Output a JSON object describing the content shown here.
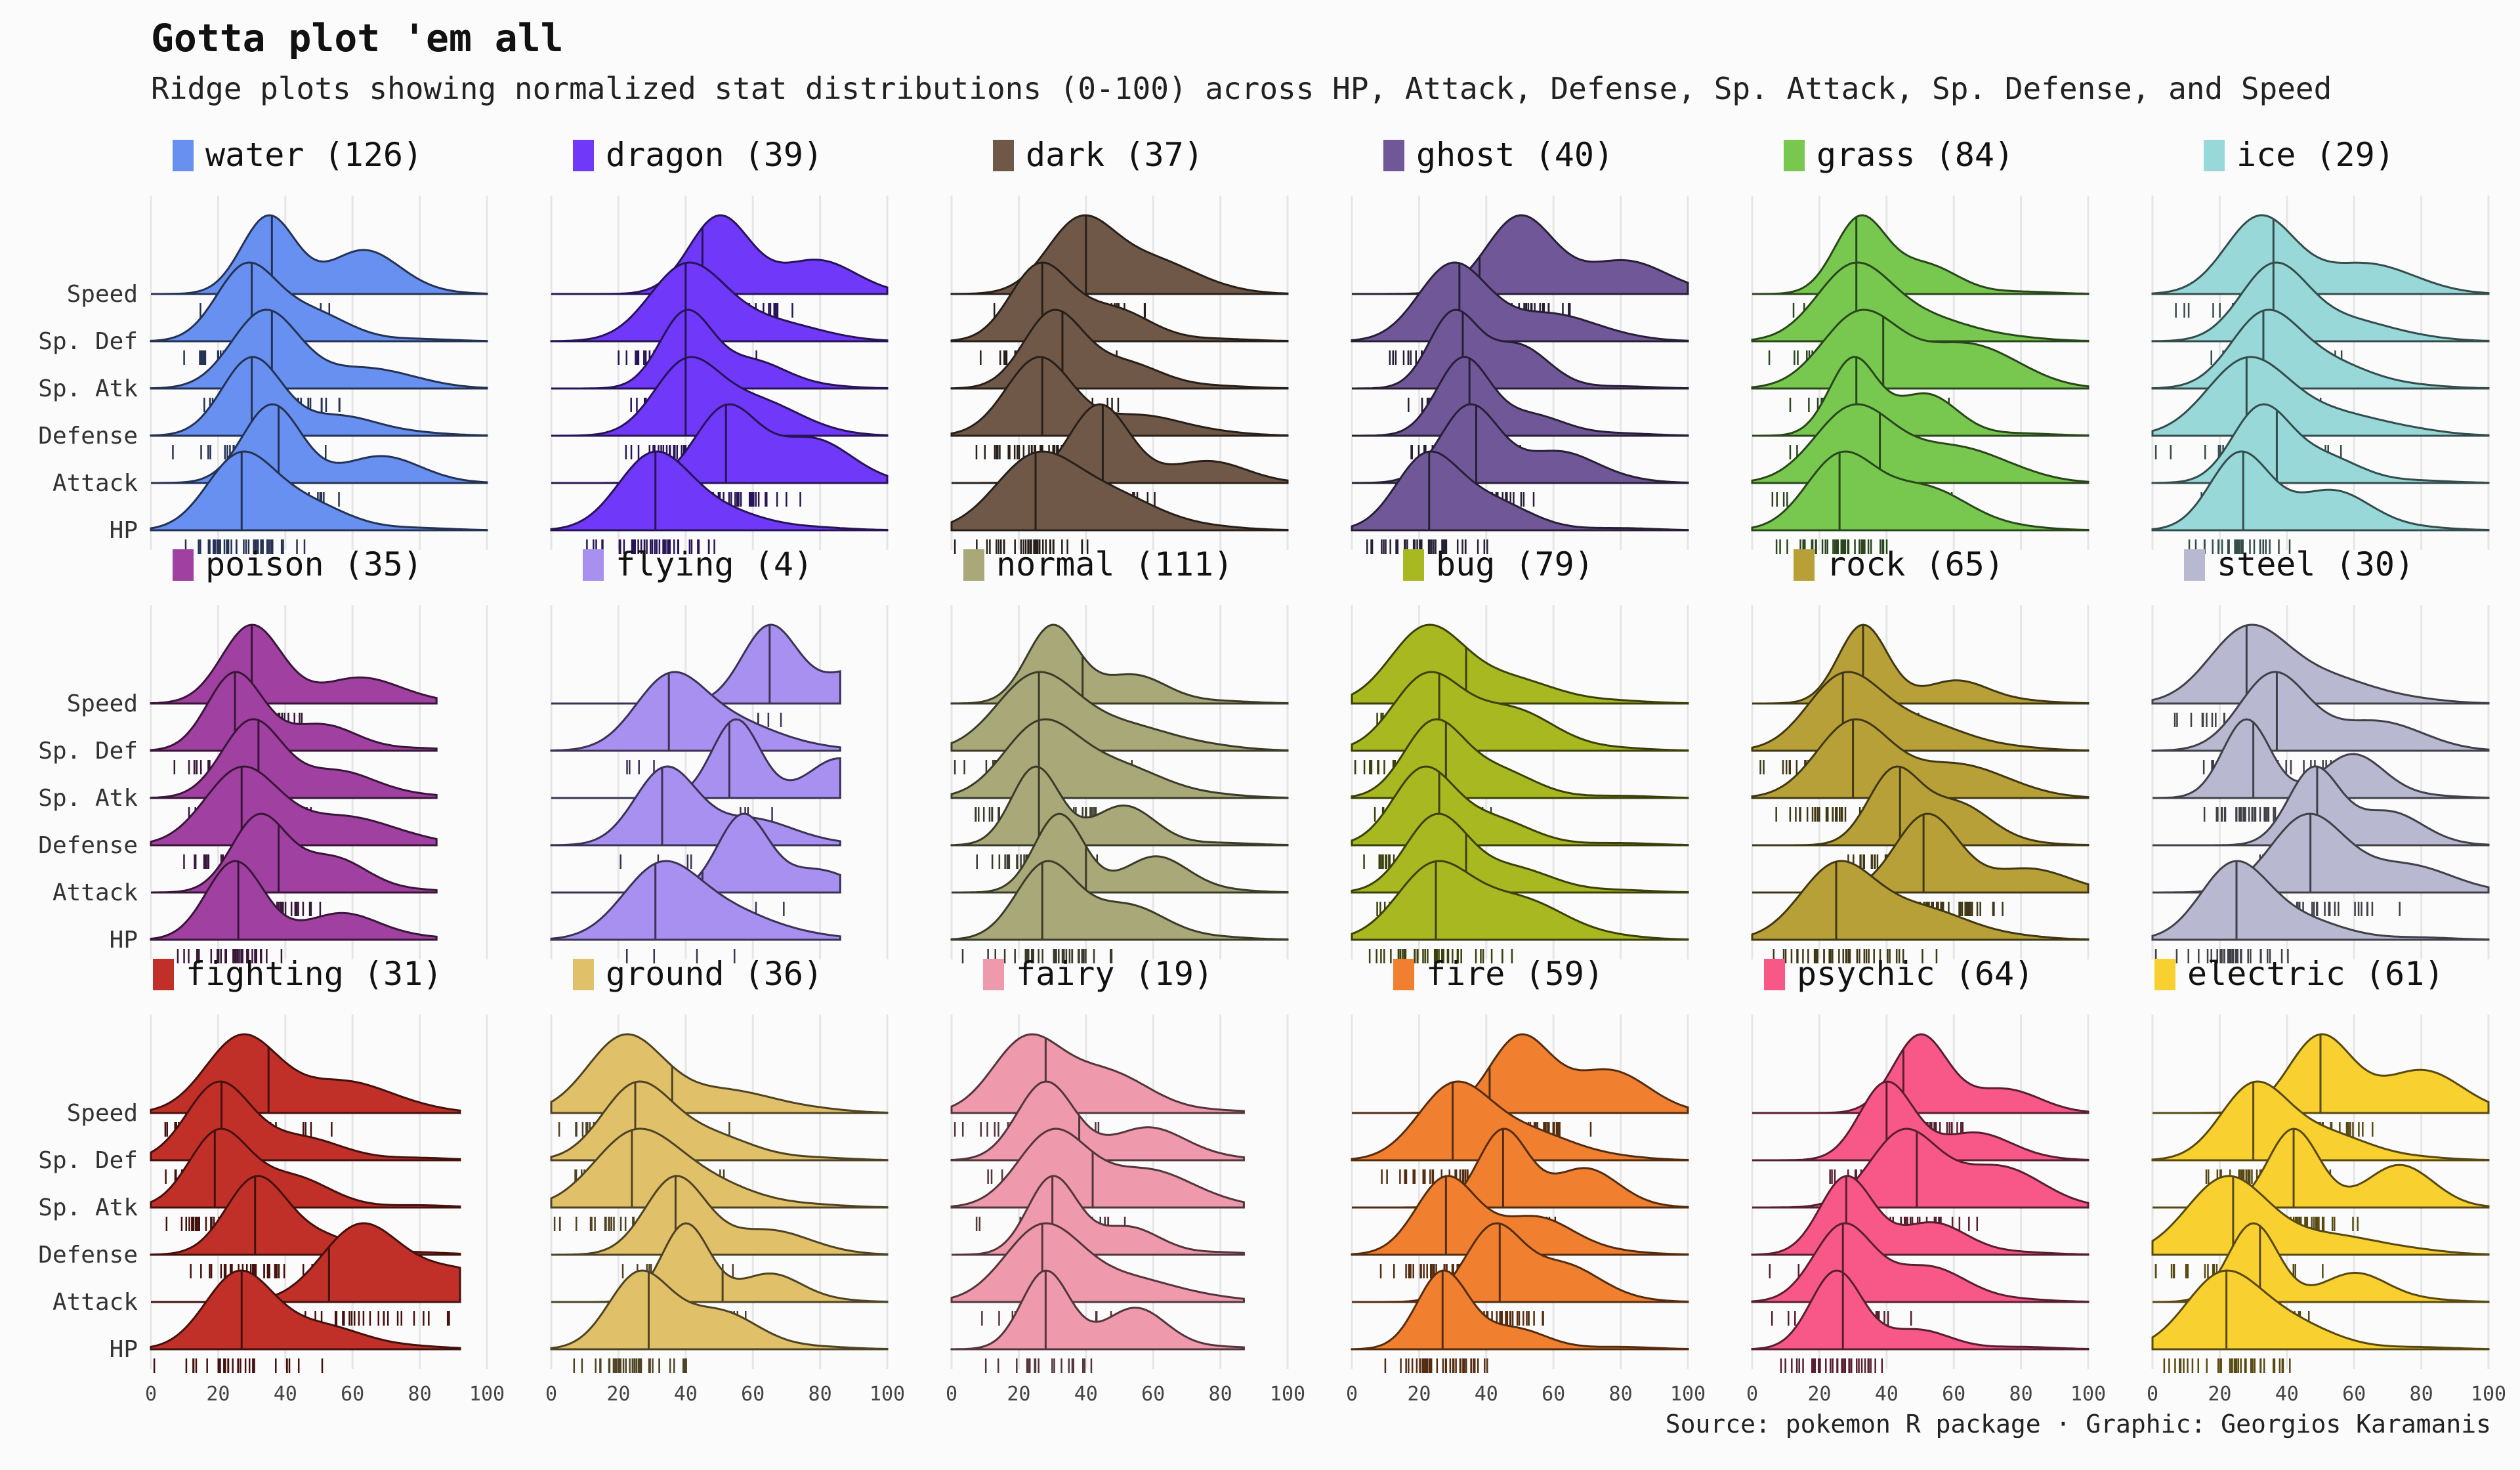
{
  "title": "Gotta plot 'em all",
  "subtitle": "Ridge plots showing normalized stat distributions (0-100) across HP, Attack, Defense, Sp. Attack, Sp. Defense, and Speed",
  "caption": "Source: pokemon R package · Graphic: Georgios Karamanis",
  "chart_data": {
    "type": "ridgeline",
    "stats": [
      "HP",
      "Attack",
      "Defense",
      "Sp. Atk",
      "Sp. Def",
      "Speed"
    ],
    "x_ticks": [
      0,
      20,
      40,
      60,
      80,
      100
    ],
    "xlim": [
      0,
      100
    ],
    "grid": true,
    "panels": [
      {
        "type": "water",
        "count": 126,
        "color": "#6890F0",
        "medians": {
          "HP": 27,
          "Attack": 38,
          "Defense": 30,
          "Sp. Atk": 36,
          "Sp. Def": 30,
          "Speed": 36
        },
        "modes": {
          "HP": 26,
          "Attack": 36,
          "Defense": 30,
          "Sp. Atk": 34,
          "Sp. Def": 28,
          "Speed": 35
        },
        "xmax": {
          "HP": 100,
          "Attack": 100,
          "Defense": 100,
          "Sp. Atk": 100,
          "Sp. Def": 100,
          "Speed": 100
        }
      },
      {
        "type": "dragon",
        "count": 39,
        "color": "#7038F8",
        "medians": {
          "HP": 31,
          "Attack": 52,
          "Defense": 40,
          "Sp. Atk": 40,
          "Sp. Def": 40,
          "Speed": 45
        },
        "modes": {
          "HP": 30,
          "Attack": 52,
          "Defense": 40,
          "Sp. Atk": 40,
          "Sp. Def": 40,
          "Speed": 50
        },
        "xmax": {
          "HP": 100,
          "Attack": 100,
          "Defense": 100,
          "Sp. Atk": 100,
          "Sp. Def": 100,
          "Speed": 100
        }
      },
      {
        "type": "dark",
        "count": 37,
        "color": "#705848",
        "medians": {
          "HP": 25,
          "Attack": 45,
          "Defense": 27,
          "Sp. Atk": 33,
          "Sp. Def": 27,
          "Speed": 40
        },
        "modes": {
          "HP": 24,
          "Attack": 44,
          "Defense": 26,
          "Sp. Atk": 30,
          "Sp. Def": 26,
          "Speed": 38
        },
        "xmax": {
          "HP": 100,
          "Attack": 100,
          "Defense": 100,
          "Sp. Atk": 100,
          "Sp. Def": 100,
          "Speed": 100
        }
      },
      {
        "type": "ghost",
        "count": 40,
        "color": "#705898",
        "medians": {
          "HP": 23,
          "Attack": 37,
          "Defense": 35,
          "Sp. Atk": 33,
          "Sp. Def": 32,
          "Speed": 38
        },
        "modes": {
          "HP": 22,
          "Attack": 35,
          "Defense": 33,
          "Sp. Atk": 30,
          "Sp. Def": 30,
          "Speed": 50
        },
        "xmax": {
          "HP": 100,
          "Attack": 100,
          "Defense": 100,
          "Sp. Atk": 100,
          "Sp. Def": 100,
          "Speed": 100
        }
      },
      {
        "type": "grass",
        "count": 84,
        "color": "#78C850",
        "medians": {
          "HP": 26,
          "Attack": 38,
          "Defense": 31,
          "Sp. Atk": 39,
          "Sp. Def": 31,
          "Speed": 31
        },
        "modes": {
          "HP": 26,
          "Attack": 30,
          "Defense": 30,
          "Sp. Atk": 32,
          "Sp. Def": 30,
          "Speed": 32
        },
        "xmax": {
          "HP": 100,
          "Attack": 100,
          "Defense": 100,
          "Sp. Atk": 100,
          "Sp. Def": 100,
          "Speed": 100
        }
      },
      {
        "type": "ice",
        "count": 29,
        "color": "#98D8D8",
        "medians": {
          "HP": 27,
          "Attack": 37,
          "Defense": 28,
          "Sp. Atk": 33,
          "Sp. Def": 36,
          "Speed": 36
        },
        "modes": {
          "HP": 26,
          "Attack": 32,
          "Defense": 28,
          "Sp. Atk": 33,
          "Sp. Def": 36,
          "Speed": 32
        },
        "xmax": {
          "HP": 100,
          "Attack": 100,
          "Defense": 100,
          "Sp. Atk": 100,
          "Sp. Def": 100,
          "Speed": 100
        }
      },
      {
        "type": "poison",
        "count": 35,
        "color": "#A040A0",
        "medians": {
          "HP": 26,
          "Attack": 38,
          "Defense": 27,
          "Sp. Atk": 32,
          "Sp. Def": 25,
          "Speed": 30
        },
        "modes": {
          "HP": 25,
          "Attack": 32,
          "Defense": 27,
          "Sp. Atk": 30,
          "Sp. Def": 25,
          "Speed": 30
        },
        "xmax": {
          "HP": 85,
          "Attack": 85,
          "Defense": 85,
          "Sp. Atk": 85,
          "Sp. Def": 85,
          "Speed": 85
        }
      },
      {
        "type": "flying",
        "count": 4,
        "color": "#A890F0",
        "medians": {
          "HP": 31,
          "Attack": 45,
          "Defense": 33,
          "Sp. Atk": 53,
          "Sp. Def": 35,
          "Speed": 65
        },
        "modes": {
          "HP": 32,
          "Attack": 57,
          "Defense": 34,
          "Sp. Atk": 55,
          "Sp. Def": 35,
          "Speed": 65
        },
        "xmax": {
          "HP": 86,
          "Attack": 86,
          "Defense": 86,
          "Sp. Atk": 86,
          "Sp. Def": 86,
          "Speed": 86
        }
      },
      {
        "type": "normal",
        "count": 111,
        "color": "#A8A878",
        "medians": {
          "HP": 27,
          "Attack": 40,
          "Defense": 26,
          "Sp. Atk": 26,
          "Sp. Def": 26,
          "Speed": 39
        },
        "modes": {
          "HP": 28,
          "Attack": 32,
          "Defense": 25,
          "Sp. Atk": 26,
          "Sp. Def": 25,
          "Speed": 30
        },
        "xmax": {
          "HP": 100,
          "Attack": 100,
          "Defense": 100,
          "Sp. Atk": 100,
          "Sp. Def": 100,
          "Speed": 100
        }
      },
      {
        "type": "bug",
        "count": 79,
        "color": "#A8B820",
        "medians": {
          "HP": 25,
          "Attack": 34,
          "Defense": 26,
          "Sp. Atk": 28,
          "Sp. Def": 26,
          "Speed": 34
        },
        "modes": {
          "HP": 24,
          "Attack": 25,
          "Defense": 21,
          "Sp. Atk": 24,
          "Sp. Def": 22,
          "Speed": 22
        },
        "xmax": {
          "HP": 100,
          "Attack": 100,
          "Defense": 100,
          "Sp. Atk": 100,
          "Sp. Def": 100,
          "Speed": 100
        }
      },
      {
        "type": "rock",
        "count": 65,
        "color": "#B8A038",
        "medians": {
          "HP": 25,
          "Attack": 51,
          "Defense": 44,
          "Sp. Atk": 30,
          "Sp. Def": 27,
          "Speed": 33
        },
        "modes": {
          "HP": 25,
          "Attack": 52,
          "Defense": 42,
          "Sp. Atk": 30,
          "Sp. Def": 27,
          "Speed": 33
        },
        "xmax": {
          "HP": 100,
          "Attack": 100,
          "Defense": 100,
          "Sp. Atk": 100,
          "Sp. Def": 100,
          "Speed": 100
        }
      },
      {
        "type": "steel",
        "count": 30,
        "color": "#B8B8D0",
        "medians": {
          "HP": 25,
          "Attack": 47,
          "Defense": 49,
          "Sp. Atk": 30,
          "Sp. Def": 37,
          "Speed": 28
        },
        "modes": {
          "HP": 24,
          "Attack": 46,
          "Defense": 48,
          "Sp. Atk": 28,
          "Sp. Def": 36,
          "Speed": 28
        },
        "xmax": {
          "HP": 100,
          "Attack": 100,
          "Defense": 100,
          "Sp. Atk": 100,
          "Sp. Def": 100,
          "Speed": 100
        }
      },
      {
        "type": "fighting",
        "count": 31,
        "color": "#C03028",
        "medians": {
          "HP": 27,
          "Attack": 53,
          "Defense": 31,
          "Sp. Atk": 19,
          "Sp. Def": 21,
          "Speed": 35
        },
        "modes": {
          "HP": 26,
          "Attack": 62,
          "Defense": 31,
          "Sp. Atk": 20,
          "Sp. Def": 20,
          "Speed": 27
        },
        "xmax": {
          "HP": 92,
          "Attack": 92,
          "Defense": 92,
          "Sp. Atk": 92,
          "Sp. Def": 92,
          "Speed": 92
        }
      },
      {
        "type": "ground",
        "count": 36,
        "color": "#E0C068",
        "medians": {
          "HP": 29,
          "Attack": 51,
          "Defense": 37,
          "Sp. Atk": 24,
          "Sp. Def": 25,
          "Speed": 36
        },
        "modes": {
          "HP": 26,
          "Attack": 40,
          "Defense": 37,
          "Sp. Atk": 24,
          "Sp. Def": 25,
          "Speed": 22
        },
        "xmax": {
          "HP": 100,
          "Attack": 100,
          "Defense": 100,
          "Sp. Atk": 100,
          "Sp. Def": 100,
          "Speed": 100
        }
      },
      {
        "type": "fairy",
        "count": 19,
        "color": "#EE99AC",
        "medians": {
          "HP": 28,
          "Attack": 27,
          "Defense": 30,
          "Sp. Atk": 42,
          "Sp. Def": 38,
          "Speed": 28
        },
        "modes": {
          "HP": 28,
          "Attack": 27,
          "Defense": 30,
          "Sp. Atk": 30,
          "Sp. Def": 28,
          "Speed": 22
        },
        "xmax": {
          "HP": 87,
          "Attack": 87,
          "Defense": 87,
          "Sp. Atk": 87,
          "Sp. Def": 87,
          "Speed": 87
        }
      },
      {
        "type": "fire",
        "count": 59,
        "color": "#F08030",
        "medians": {
          "HP": 27,
          "Attack": 44,
          "Defense": 28,
          "Sp. Atk": 45,
          "Sp. Def": 30,
          "Speed": 41
        },
        "modes": {
          "HP": 27,
          "Attack": 42,
          "Defense": 28,
          "Sp. Atk": 45,
          "Sp. Def": 30,
          "Speed": 50
        },
        "xmax": {
          "HP": 100,
          "Attack": 100,
          "Defense": 100,
          "Sp. Atk": 100,
          "Sp. Def": 100,
          "Speed": 100
        }
      },
      {
        "type": "psychic",
        "count": 64,
        "color": "#F85888",
        "medians": {
          "HP": 27,
          "Attack": 27,
          "Defense": 28,
          "Sp. Atk": 49,
          "Sp. Def": 40,
          "Speed": 45
        },
        "modes": {
          "HP": 25,
          "Attack": 27,
          "Defense": 28,
          "Sp. Atk": 45,
          "Sp. Def": 40,
          "Speed": 50
        },
        "xmax": {
          "HP": 100,
          "Attack": 100,
          "Defense": 100,
          "Sp. Atk": 100,
          "Sp. Def": 100,
          "Speed": 100
        }
      },
      {
        "type": "electric",
        "count": 61,
        "color": "#F8D030",
        "medians": {
          "HP": 22,
          "Attack": 32,
          "Defense": 24,
          "Sp. Atk": 42,
          "Sp. Def": 30,
          "Speed": 50
        },
        "modes": {
          "HP": 20,
          "Attack": 30,
          "Defense": 22,
          "Sp. Atk": 42,
          "Sp. Def": 30,
          "Speed": 50
        },
        "xmax": {
          "HP": 100,
          "Attack": 100,
          "Defense": 100,
          "Sp. Atk": 100,
          "Sp. Def": 100,
          "Speed": 100
        }
      }
    ]
  }
}
